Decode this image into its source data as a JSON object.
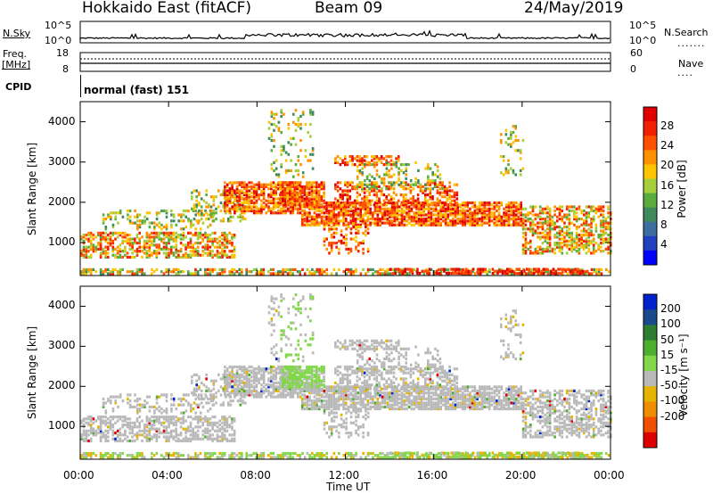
{
  "header": {
    "radar": "Hokkaido East (fitACF)",
    "beam": "Beam 09",
    "date": "24/May/2019"
  },
  "colors": {
    "power_scale": [
      "#0000ff",
      "#2040c0",
      "#3c6ea0",
      "#3f8a5c",
      "#5aac3c",
      "#a6cf3b",
      "#ffc400",
      "#ff9000",
      "#ff5000",
      "#f02000",
      "#e00000"
    ],
    "velocity_scale": [
      "#0022cc",
      "#1b4a8c",
      "#2e7d32",
      "#4caf2f",
      "#82d64a",
      "#b9b9b9",
      "#e6b400",
      "#f08c00",
      "#f05000",
      "#dd0000"
    ]
  },
  "top_panels": {
    "nsky_label": "N.Sky",
    "nsky_ticks": [
      "10^5",
      "10^0"
    ],
    "nsearch_label": "N.Search",
    "nsearch_ticks": [
      "10^5",
      "10^0"
    ],
    "freq_label_1": "Freq.",
    "freq_label_2": "[MHz]",
    "freq_ticks": [
      "18",
      "8"
    ],
    "nave_label": "Nave",
    "nave_ticks": [
      "60",
      "0"
    ],
    "cpid_label": "CPID",
    "cpid_value": "normal (fast) 151"
  },
  "chart_data": [
    {
      "type": "heatmap",
      "title": "",
      "variable": "Power",
      "xlabel": "",
      "ylabel": "Slant Range [km]",
      "x_ticks": [
        "00:00",
        "04:00",
        "08:00",
        "12:00",
        "16:00",
        "20:00",
        "00:00"
      ],
      "y_ticks": [
        1000,
        2000,
        3000,
        4000
      ],
      "ylim": [
        180,
        4500
      ],
      "colorbar_label": "Power [dB]",
      "colorbar_ticks": [
        4,
        8,
        12,
        16,
        20,
        24,
        28
      ],
      "colorbar_range": [
        0,
        32
      ]
    },
    {
      "type": "heatmap",
      "title": "",
      "variable": "Velocity",
      "xlabel": "Time UT",
      "ylabel": "Slant Range [km]",
      "x_ticks": [
        "00:00",
        "04:00",
        "08:00",
        "12:00",
        "16:00",
        "20:00",
        "00:00"
      ],
      "y_ticks": [
        1000,
        2000,
        3000,
        4000
      ],
      "ylim": [
        180,
        4500
      ],
      "colorbar_label": "Velocity [m s⁻¹]",
      "colorbar_ticks": [
        200,
        100,
        50,
        15,
        -15,
        -50,
        -100,
        -200
      ]
    }
  ]
}
